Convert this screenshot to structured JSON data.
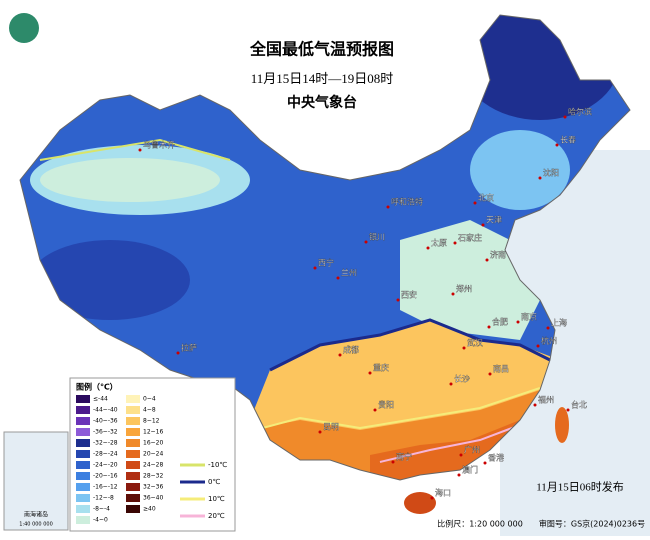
{
  "header": {
    "title": "全国最低气温预报图",
    "subtitle": "11月15日14时—19日08时",
    "agency": "中央气象台"
  },
  "cities": [
    "乌鲁木齐",
    "哈尔滨",
    "长春",
    "沈阳",
    "呼和浩特",
    "北京",
    "天津",
    "石家庄",
    "银川",
    "太原",
    "济南",
    "西宁",
    "兰州",
    "郑州",
    "西安",
    "合肥",
    "南京",
    "上海",
    "拉萨",
    "成都",
    "武汉",
    "杭州",
    "重庆",
    "长沙",
    "南昌",
    "福州",
    "台北",
    "贵阳",
    "昆明",
    "南宁",
    "广州",
    "澳门",
    "香港",
    "海口"
  ],
  "legend": {
    "title": "图例（℃）",
    "items": [
      {
        "label": "≤-44",
        "color": "#2a0a5e"
      },
      {
        "label": "-44~-40",
        "color": "#4b1a8c"
      },
      {
        "label": "-40~-36",
        "color": "#6a33b8"
      },
      {
        "label": "-36~-32",
        "color": "#8d5bd8"
      },
      {
        "label": "-32~-28",
        "color": "#1e2f8f"
      },
      {
        "label": "-28~-24",
        "color": "#2546b0"
      },
      {
        "label": "-24~-20",
        "color": "#2f62cc"
      },
      {
        "label": "-20~-16",
        "color": "#3c7fe0"
      },
      {
        "label": "-16~-12",
        "color": "#55a0ee"
      },
      {
        "label": "-12~-8",
        "color": "#7cc4f2"
      },
      {
        "label": "-8~-4",
        "color": "#a8e0ee"
      },
      {
        "label": "-4~0",
        "color": "#cdeedd"
      },
      {
        "label": "0~4",
        "color": "#fff3b8"
      },
      {
        "label": "4~8",
        "color": "#fde08a"
      },
      {
        "label": "8~12",
        "color": "#fcc55e"
      },
      {
        "label": "12~16",
        "color": "#f9a53b"
      },
      {
        "label": "16~20",
        "color": "#f08a2a"
      },
      {
        "label": "20~24",
        "color": "#e56a1e"
      },
      {
        "label": "24~28",
        "color": "#d04a16"
      },
      {
        "label": "28~32",
        "color": "#b02e12"
      },
      {
        "label": "32~36",
        "color": "#8a1a0e"
      },
      {
        "label": "36~40",
        "color": "#5e0e08"
      },
      {
        "label": "≥40",
        "color": "#3a0604"
      }
    ],
    "contours": [
      {
        "label": "-10℃",
        "color": "#d8e46a"
      },
      {
        "label": "0℃",
        "color": "#1b2a8c"
      },
      {
        "label": "10℃",
        "color": "#f5ec7a"
      },
      {
        "label": "20℃",
        "color": "#f7b4d8"
      }
    ]
  },
  "inset": {
    "label": "南海诸岛",
    "scale": "1:40 000 000"
  },
  "footer": {
    "issued": "11月15日06时发布",
    "scale": "比例尺：1:20 000 000",
    "map_number": "审图号：GS京(2024)0236号"
  }
}
